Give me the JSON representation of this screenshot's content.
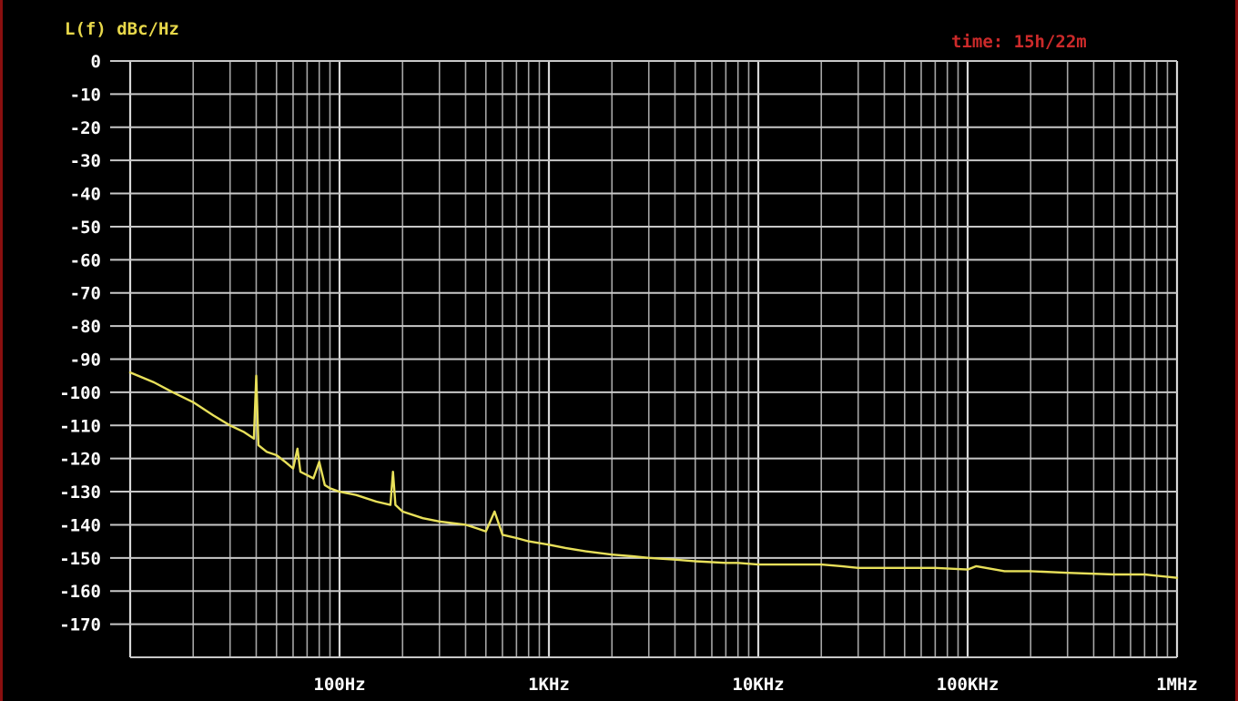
{
  "chart_data": {
    "type": "line",
    "ylabel": "L(f) dBc/Hz",
    "annotation": "time: 15h/22m",
    "xscale": "log",
    "xlim": [
      10,
      1000000
    ],
    "ylim": [
      -180,
      0
    ],
    "grid": true,
    "y_ticks": [
      "0",
      "-10",
      "-20",
      "-30",
      "-40",
      "-50",
      "-60",
      "-70",
      "-80",
      "-90",
      "-100",
      "-110",
      "-120",
      "-130",
      "-140",
      "-150",
      "-160",
      "-170"
    ],
    "x_ticks": [
      {
        "value": 100,
        "label": "100Hz"
      },
      {
        "value": 1000,
        "label": "1KHz"
      },
      {
        "value": 10000,
        "label": "10KHz"
      },
      {
        "value": 100000,
        "label": "100KHz"
      },
      {
        "value": 1000000,
        "label": "1MHz"
      }
    ],
    "series": [
      {
        "color": "#e8e05a",
        "x": [
          10,
          13,
          16,
          20,
          25,
          30,
          35,
          39,
          40,
          41,
          45,
          50,
          55,
          60,
          63,
          65,
          70,
          75,
          80,
          85,
          90,
          100,
          120,
          150,
          175,
          180,
          185,
          200,
          250,
          300,
          400,
          450,
          500,
          550,
          600,
          700,
          800,
          1000,
          1200,
          1500,
          2000,
          2500,
          3000,
          4000,
          5000,
          7000,
          8000,
          10000,
          12000,
          15000,
          20000,
          25000,
          30000,
          40000,
          50000,
          70000,
          100000,
          110000,
          150000,
          200000,
          300000,
          500000,
          700000,
          1000000
        ],
        "y": [
          -94,
          -97,
          -100,
          -103,
          -107,
          -110,
          -112,
          -114,
          -95,
          -116,
          -118,
          -119,
          -121,
          -123,
          -117,
          -124,
          -125,
          -126,
          -121,
          -128,
          -129,
          -130,
          -131,
          -133,
          -134,
          -124,
          -134,
          -136,
          -138,
          -139,
          -140,
          -141,
          -142,
          -136,
          -143,
          -144,
          -145,
          -146,
          -147,
          -148,
          -149,
          -149.5,
          -150,
          -150.5,
          -151,
          -151.5,
          -151.5,
          -152,
          -152,
          -152,
          -152,
          -152.5,
          -153,
          -153,
          -153,
          -153,
          -153.5,
          -152.5,
          -154,
          -154,
          -154.5,
          -155,
          -155,
          -156
        ]
      }
    ]
  },
  "header": {
    "ylabel": "L(f) dBc/Hz",
    "timer": "time: 15h/22m"
  }
}
